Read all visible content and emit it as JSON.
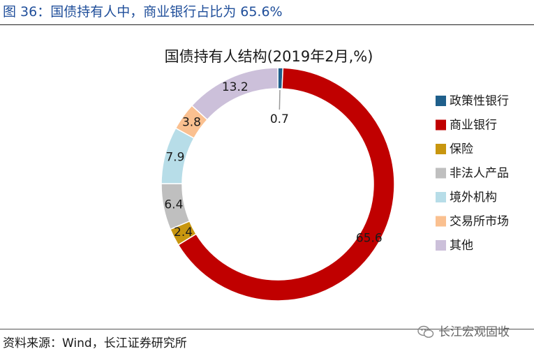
{
  "figure": {
    "title": "图 36：国债持有人中，商业银行占比为 65.6%",
    "source": "资料来源：Wind，长江证券研究所",
    "watermark": "长江宏观固收"
  },
  "chart_data": {
    "type": "pie",
    "title": "国债持有人结构(2019年2月,%)",
    "categories": [
      "政策性银行",
      "商业银行",
      "保险",
      "非法人产品",
      "境外机构",
      "交易所市场",
      "其他"
    ],
    "values": [
      0.7,
      65.6,
      2.4,
      6.4,
      7.9,
      3.8,
      13.2
    ],
    "labels": [
      "0.7",
      "65.6",
      "2.4",
      "6.4",
      "7.9",
      "3.8",
      "13.2"
    ],
    "colors": [
      "#1f5f8b",
      "#c00000",
      "#c8960f",
      "#bfbfbf",
      "#b7dde8",
      "#fac090",
      "#ccc0da"
    ],
    "donut": true,
    "legend": "right",
    "start": "top",
    "direction": "clockwise"
  }
}
